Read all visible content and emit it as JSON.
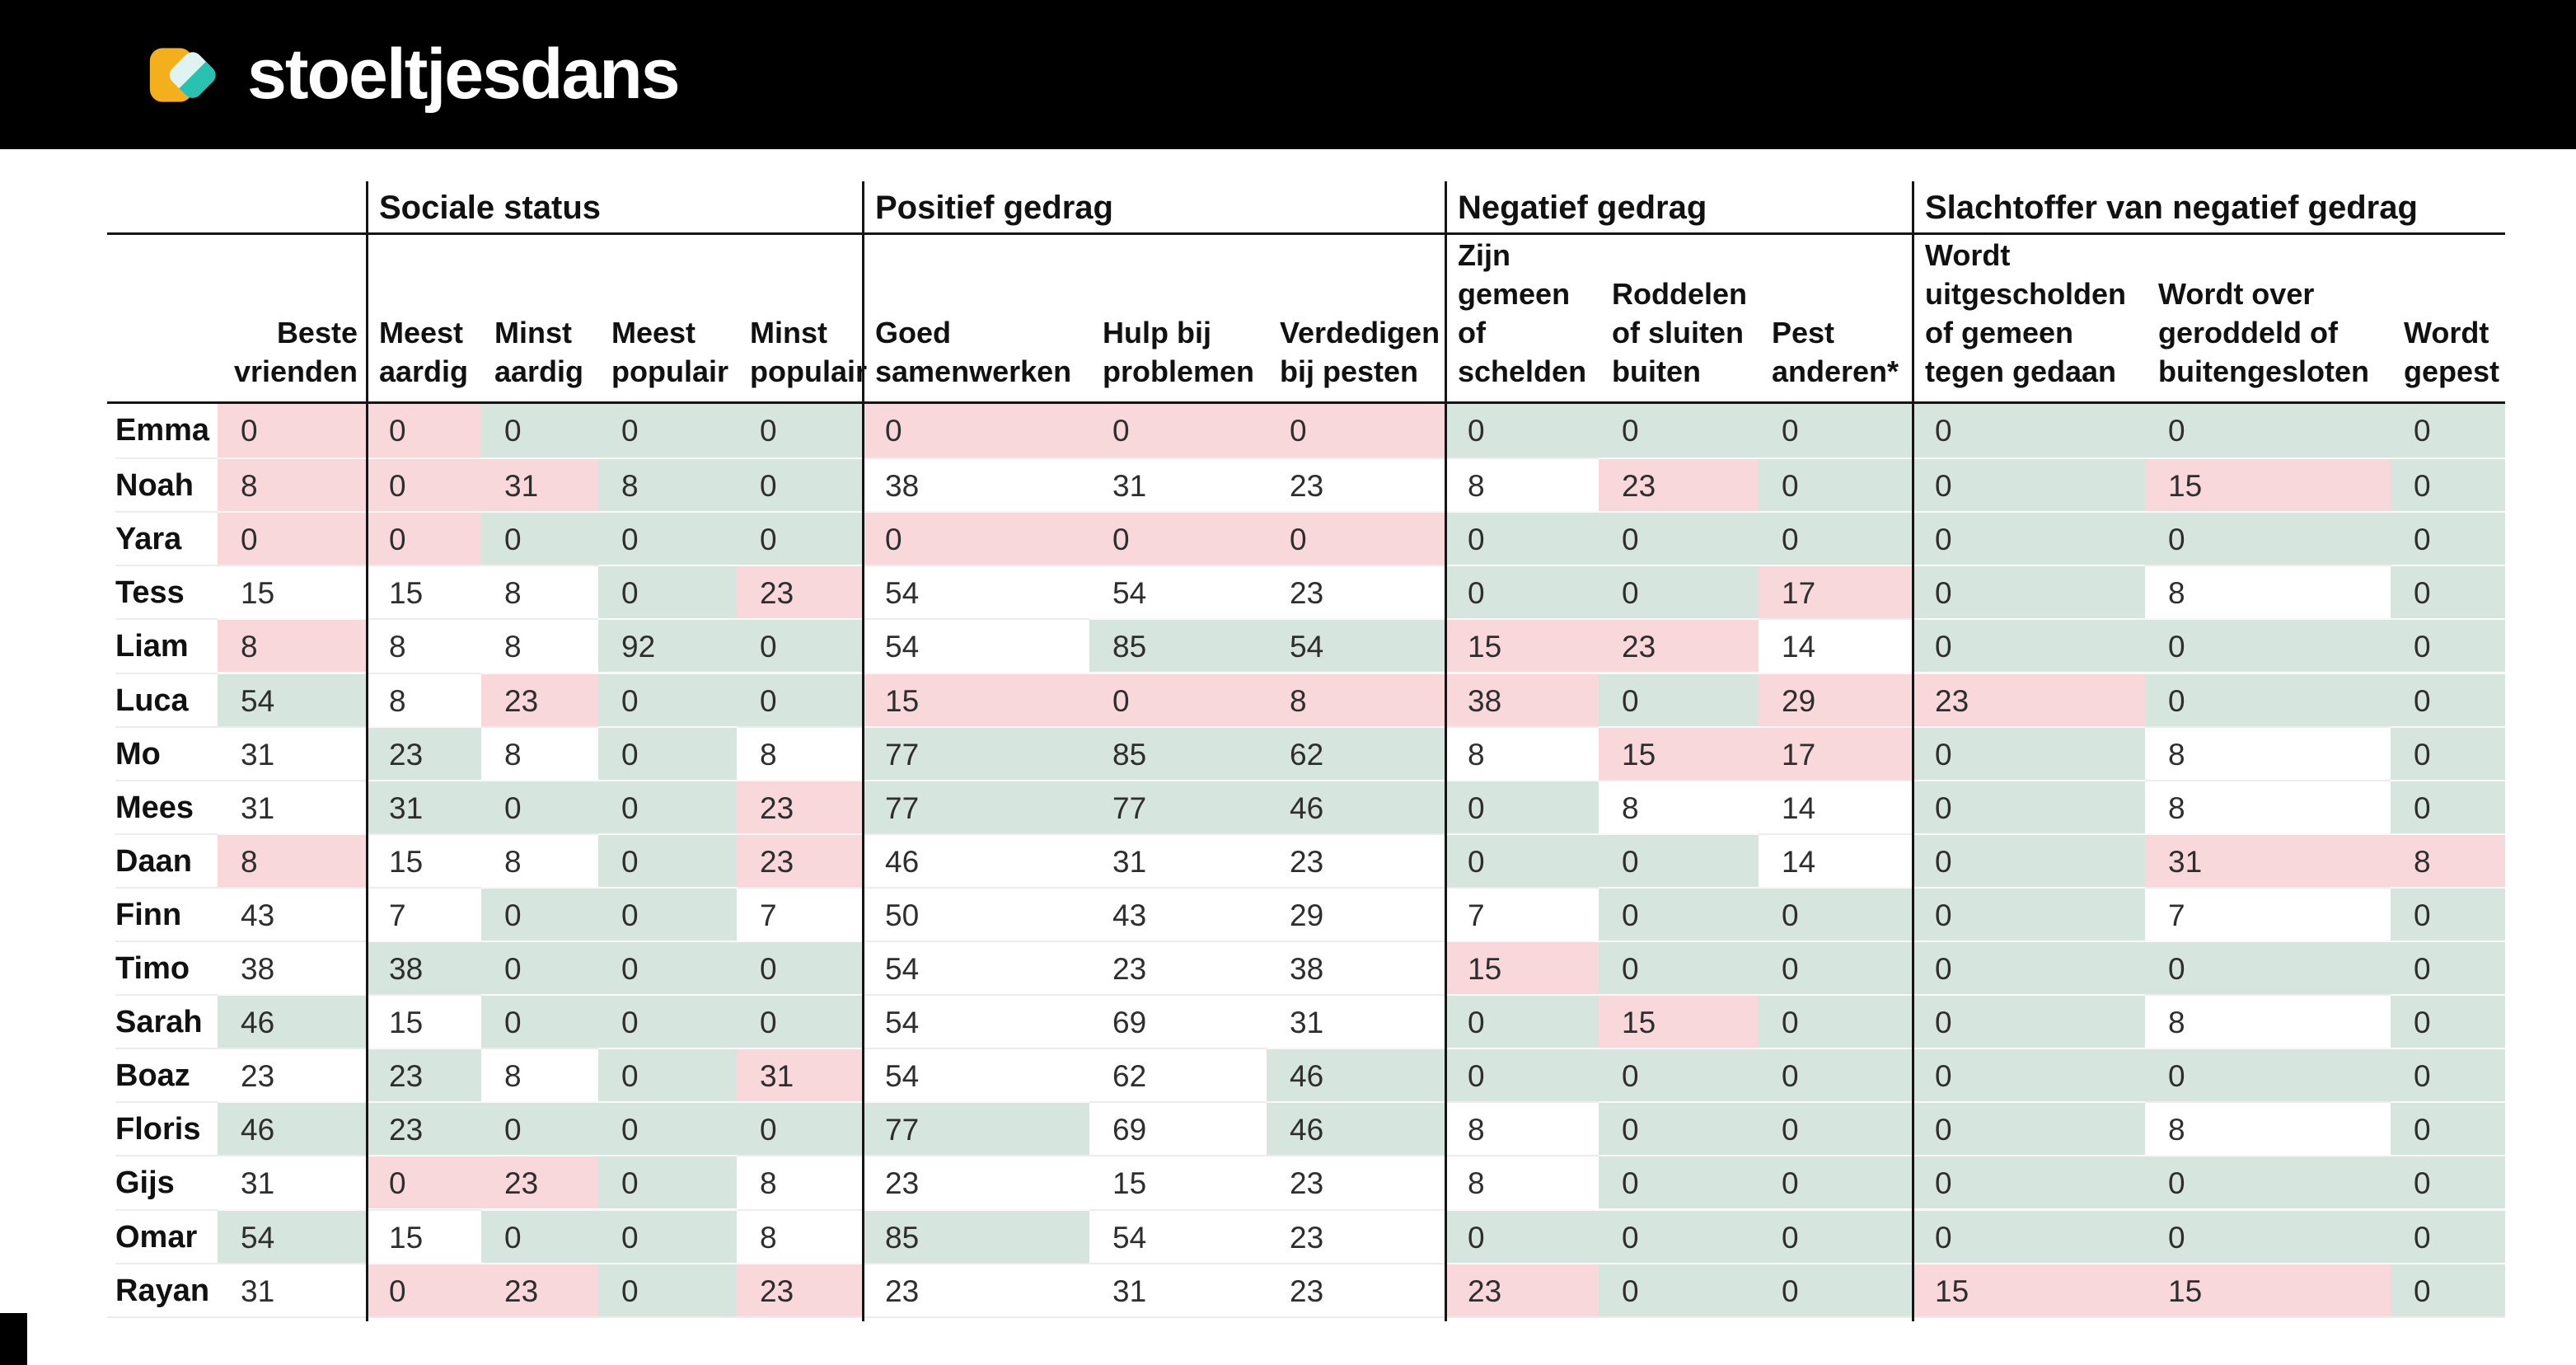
{
  "brand": {
    "name": "stoeltjesdans"
  },
  "colors": {
    "pink": "#f9d8db",
    "green": "#d6e5dd",
    "white": "#ffffff",
    "topbar": "#000000",
    "logo_yellow": "#f3b01c",
    "logo_teal": "#29c2b2",
    "logo_mint": "#dff4f0"
  },
  "table": {
    "groups": [
      {
        "label": "Sociale status"
      },
      {
        "label": "Positief gedrag"
      },
      {
        "label": "Negatief gedrag"
      },
      {
        "label": "Slachtoffer van negatief gedrag"
      }
    ],
    "columns": [
      {
        "key": "beste_vrienden",
        "label": "Beste\nvrienden",
        "group": null
      },
      {
        "key": "meest_aardig",
        "label": "Meest\naardig",
        "group": 0
      },
      {
        "key": "minst_aardig",
        "label": "Minst\naardig",
        "group": 0
      },
      {
        "key": "meest_populair",
        "label": "Meest\npopulair",
        "group": 0
      },
      {
        "key": "minst_populair",
        "label": "Minst\npopulair",
        "group": 0
      },
      {
        "key": "goed_samenwerken",
        "label": "Goed\nsamenwerken",
        "group": 1
      },
      {
        "key": "hulp_bij_problemen",
        "label": "Hulp bij\nproblemen",
        "group": 1
      },
      {
        "key": "verdedigen_bij_pesten",
        "label": "Verdedigen\nbij pesten",
        "group": 1
      },
      {
        "key": "zijn_gemeen_of_schelden",
        "label": "Zijn\ngemeen\nof\nschelden",
        "group": 2
      },
      {
        "key": "roddelen_of_sluiten_buiten",
        "label": "Roddelen\nof sluiten\nbuiten",
        "group": 2
      },
      {
        "key": "pest_anderen",
        "label": "Pest\nanderen*",
        "group": 2
      },
      {
        "key": "wordt_uitgescholden",
        "label": "Wordt\nuitgescholden\nof gemeen\ntegen gedaan",
        "group": 3
      },
      {
        "key": "wordt_geroddeld",
        "label": "Wordt over\ngeroddeld of\nbuitengesloten",
        "group": 3
      },
      {
        "key": "wordt_gepest",
        "label": "Wordt\ngepest",
        "group": 3
      }
    ],
    "rows": [
      {
        "name": "Emma",
        "values": [
          "0",
          "0",
          "0",
          "0",
          "0",
          "0",
          "0",
          "0",
          "0",
          "0",
          "0",
          "0",
          "0",
          "0"
        ],
        "colors": [
          "pink",
          "pink",
          "green",
          "green",
          "green",
          "pink",
          "pink",
          "pink",
          "green",
          "green",
          "green",
          "green",
          "green",
          "green"
        ]
      },
      {
        "name": "Noah",
        "values": [
          "8",
          "0",
          "31",
          "8",
          "0",
          "38",
          "31",
          "23",
          "8",
          "23",
          "0",
          "0",
          "15",
          "0"
        ],
        "colors": [
          "pink",
          "pink",
          "pink",
          "green",
          "green",
          "white",
          "white",
          "white",
          "white",
          "pink",
          "green",
          "green",
          "pink",
          "green"
        ]
      },
      {
        "name": "Yara",
        "values": [
          "0",
          "0",
          "0",
          "0",
          "0",
          "0",
          "0",
          "0",
          "0",
          "0",
          "0",
          "0",
          "0",
          "0"
        ],
        "colors": [
          "pink",
          "pink",
          "green",
          "green",
          "green",
          "pink",
          "pink",
          "pink",
          "green",
          "green",
          "green",
          "green",
          "green",
          "green"
        ]
      },
      {
        "name": "Tess",
        "values": [
          "15",
          "15",
          "8",
          "0",
          "23",
          "54",
          "54",
          "23",
          "0",
          "0",
          "17",
          "0",
          "8",
          "0"
        ],
        "colors": [
          "white",
          "white",
          "white",
          "green",
          "pink",
          "white",
          "white",
          "white",
          "green",
          "green",
          "pink",
          "green",
          "white",
          "green"
        ]
      },
      {
        "name": "Liam",
        "values": [
          "8",
          "8",
          "8",
          "92",
          "0",
          "54",
          "85",
          "54",
          "15",
          "23",
          "14",
          "0",
          "0",
          "0"
        ],
        "colors": [
          "pink",
          "white",
          "white",
          "green",
          "green",
          "white",
          "green",
          "green",
          "pink",
          "pink",
          "white",
          "green",
          "green",
          "green"
        ]
      },
      {
        "name": "Luca",
        "values": [
          "54",
          "8",
          "23",
          "0",
          "0",
          "15",
          "0",
          "8",
          "38",
          "0",
          "29",
          "23",
          "0",
          "0"
        ],
        "colors": [
          "green",
          "white",
          "pink",
          "green",
          "green",
          "pink",
          "pink",
          "pink",
          "pink",
          "green",
          "pink",
          "pink",
          "green",
          "green"
        ]
      },
      {
        "name": "Mo",
        "values": [
          "31",
          "23",
          "8",
          "0",
          "8",
          "77",
          "85",
          "62",
          "8",
          "15",
          "17",
          "0",
          "8",
          "0"
        ],
        "colors": [
          "white",
          "green",
          "white",
          "green",
          "white",
          "green",
          "green",
          "green",
          "white",
          "pink",
          "pink",
          "green",
          "white",
          "green"
        ]
      },
      {
        "name": "Mees",
        "values": [
          "31",
          "31",
          "0",
          "0",
          "23",
          "77",
          "77",
          "46",
          "0",
          "8",
          "14",
          "0",
          "8",
          "0"
        ],
        "colors": [
          "white",
          "green",
          "green",
          "green",
          "pink",
          "green",
          "green",
          "green",
          "green",
          "white",
          "white",
          "green",
          "white",
          "green"
        ]
      },
      {
        "name": "Daan",
        "values": [
          "8",
          "15",
          "8",
          "0",
          "23",
          "46",
          "31",
          "23",
          "0",
          "0",
          "14",
          "0",
          "31",
          "8"
        ],
        "colors": [
          "pink",
          "white",
          "white",
          "green",
          "pink",
          "white",
          "white",
          "white",
          "green",
          "green",
          "white",
          "green",
          "pink",
          "pink"
        ]
      },
      {
        "name": "Finn",
        "values": [
          "43",
          "7",
          "0",
          "0",
          "7",
          "50",
          "43",
          "29",
          "7",
          "0",
          "0",
          "0",
          "7",
          "0"
        ],
        "colors": [
          "white",
          "white",
          "green",
          "green",
          "white",
          "white",
          "white",
          "white",
          "white",
          "green",
          "green",
          "green",
          "white",
          "green"
        ]
      },
      {
        "name": "Timo",
        "values": [
          "38",
          "38",
          "0",
          "0",
          "0",
          "54",
          "23",
          "38",
          "15",
          "0",
          "0",
          "0",
          "0",
          "0"
        ],
        "colors": [
          "white",
          "green",
          "green",
          "green",
          "green",
          "white",
          "white",
          "white",
          "pink",
          "green",
          "green",
          "green",
          "green",
          "green"
        ]
      },
      {
        "name": "Sarah",
        "values": [
          "46",
          "15",
          "0",
          "0",
          "0",
          "54",
          "69",
          "31",
          "0",
          "15",
          "0",
          "0",
          "8",
          "0"
        ],
        "colors": [
          "green",
          "white",
          "green",
          "green",
          "green",
          "white",
          "white",
          "white",
          "green",
          "pink",
          "green",
          "green",
          "white",
          "green"
        ]
      },
      {
        "name": "Boaz",
        "values": [
          "23",
          "23",
          "8",
          "0",
          "31",
          "54",
          "62",
          "46",
          "0",
          "0",
          "0",
          "0",
          "0",
          "0"
        ],
        "colors": [
          "white",
          "green",
          "white",
          "green",
          "pink",
          "white",
          "white",
          "green",
          "green",
          "green",
          "green",
          "green",
          "green",
          "green"
        ]
      },
      {
        "name": "Floris",
        "values": [
          "46",
          "23",
          "0",
          "0",
          "0",
          "77",
          "69",
          "46",
          "8",
          "0",
          "0",
          "0",
          "8",
          "0"
        ],
        "colors": [
          "green",
          "green",
          "green",
          "green",
          "green",
          "green",
          "white",
          "green",
          "white",
          "green",
          "green",
          "green",
          "white",
          "green"
        ]
      },
      {
        "name": "Gijs",
        "values": [
          "31",
          "0",
          "23",
          "0",
          "8",
          "23",
          "15",
          "23",
          "8",
          "0",
          "0",
          "0",
          "0",
          "0"
        ],
        "colors": [
          "white",
          "pink",
          "pink",
          "green",
          "white",
          "white",
          "white",
          "white",
          "white",
          "green",
          "green",
          "green",
          "green",
          "green"
        ]
      },
      {
        "name": "Omar",
        "values": [
          "54",
          "15",
          "0",
          "0",
          "8",
          "85",
          "54",
          "23",
          "0",
          "0",
          "0",
          "0",
          "0",
          "0"
        ],
        "colors": [
          "green",
          "white",
          "green",
          "green",
          "white",
          "green",
          "white",
          "white",
          "green",
          "green",
          "green",
          "green",
          "green",
          "green"
        ]
      },
      {
        "name": "Rayan",
        "values": [
          "31",
          "0",
          "23",
          "0",
          "23",
          "23",
          "31",
          "23",
          "23",
          "0",
          "0",
          "15",
          "15",
          "0"
        ],
        "colors": [
          "white",
          "pink",
          "pink",
          "green",
          "pink",
          "white",
          "white",
          "white",
          "pink",
          "green",
          "green",
          "pink",
          "pink",
          "green"
        ]
      }
    ]
  }
}
